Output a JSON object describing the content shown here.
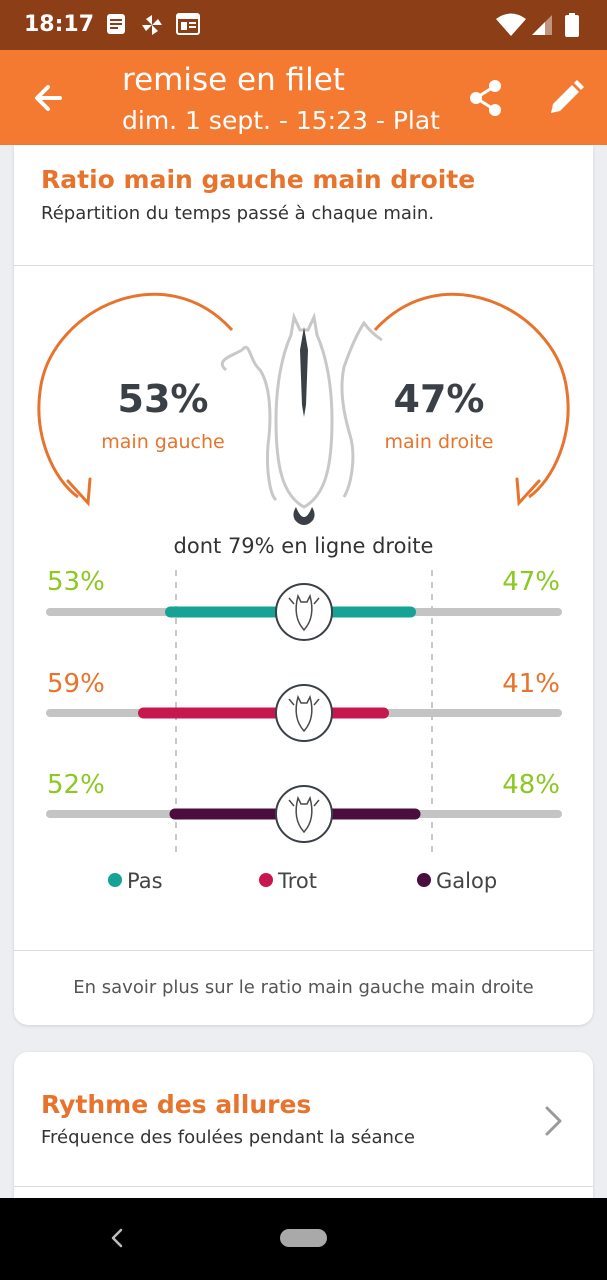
{
  "status_bar": {
    "time": "18:17",
    "icons": [
      "notes-icon",
      "pinwheel-icon",
      "news-icon",
      "wifi-icon",
      "signal-icon",
      "battery-icon"
    ]
  },
  "app_bar": {
    "title": "remise en filet",
    "subtitle": "dim. 1 sept. - 15:23 - Plat",
    "icons": [
      "back-arrow-icon",
      "share-icon",
      "edit-pencil-icon"
    ]
  },
  "ratio_card": {
    "title": "Ratio main gauche main droite",
    "subtitle": "Répartition du temps passé à chaque main.",
    "left": {
      "percent": "53%",
      "label": "main gauche"
    },
    "right": {
      "percent": "47%",
      "label": "main droite"
    },
    "straight_line": "dont 79% en ligne droite",
    "bars": [
      {
        "name": "Pas",
        "left_label": "53%",
        "right_label": "47%",
        "left_value": 53,
        "right_value": 47,
        "color": "#16a396",
        "label_color": "#8bc820"
      },
      {
        "name": "Trot",
        "left_label": "59%",
        "right_label": "41%",
        "left_value": 59,
        "right_value": 41,
        "color": "#c8174f",
        "label_color": "#e8732c"
      },
      {
        "name": "Galop",
        "left_label": "52%",
        "right_label": "48%",
        "left_value": 52,
        "right_value": 48,
        "color": "#4a0d3d",
        "label_color": "#8bc820"
      }
    ],
    "legend": [
      {
        "label": "Pas",
        "color": "#16a396"
      },
      {
        "label": "Trot",
        "color": "#c8174f"
      },
      {
        "label": "Galop",
        "color": "#4a0d3d"
      }
    ],
    "learn_more": "En savoir plus sur le ratio main gauche main droite"
  },
  "rhythm_card": {
    "title": "Rythme des allures",
    "subtitle": "Fréquence des foulées pendant la séance"
  },
  "colors": {
    "status_bar": "#8c3e16",
    "app_bar": "#f47a32",
    "accent": "#e8732c",
    "balanced_green": "#8bc820"
  }
}
